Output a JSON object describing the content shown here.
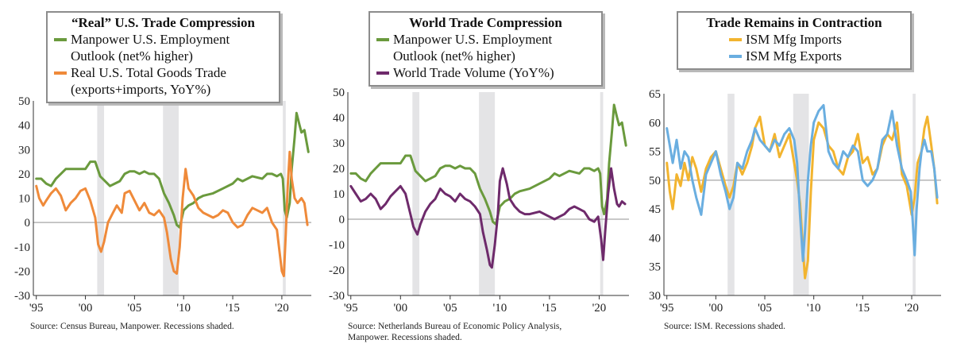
{
  "panels": [
    {
      "title": "“Real” U.S. Trade Compression",
      "source": "Source:  Census Bureau, Manpower. Recessions shaded.",
      "legend": [
        {
          "label": "Manpower U.S. Employment\nOutlook (net% higher)",
          "color": "#6a9a3d"
        },
        {
          "label": "Real U.S. Total Goods Trade\n(exports+imports, YoY%)",
          "color": "#ef8a3a"
        }
      ]
    },
    {
      "title": "World Trade Compression",
      "source": "Source:  Netherlands Bureau of Economic Policy Analysis,\nManpower. Recessions shaded.",
      "legend": [
        {
          "label": "Manpower U.S. Employment\nOutlook (net% higher)",
          "color": "#6a9a3d"
        },
        {
          "label": "World Trade Volume (YoY%)",
          "color": "#6e2a6b"
        }
      ]
    },
    {
      "title": "Trade Remains in Contraction",
      "source": "Source:  ISM. Recessions shaded.",
      "legend": [
        {
          "label": "ISM Mfg Imports",
          "color": "#f2b42f"
        },
        {
          "label": "ISM Mfg Exports",
          "color": "#6aaee0"
        }
      ]
    }
  ],
  "chart_data": [
    {
      "type": "line",
      "title": "“Real” U.S. Trade Compression",
      "x_ticks": [
        "'95",
        "'00",
        "'05",
        "'10",
        "'15",
        "'20"
      ],
      "x_tick_years": [
        1995,
        2000,
        2005,
        2010,
        2015,
        2020
      ],
      "xlim": [
        1994.7,
        2023
      ],
      "ylim": [
        -30,
        50
      ],
      "y_ticks": [
        -30,
        -20,
        -10,
        0,
        10,
        20,
        30,
        40,
        50
      ],
      "y_tick_labels": [
        "-30",
        "-20",
        "-10",
        "0",
        "10",
        "20",
        "30",
        "40",
        "50"
      ],
      "zero_line": 0,
      "recessions": [
        [
          2001.2,
          2001.9
        ],
        [
          2007.9,
          2009.5
        ],
        [
          2020.1,
          2020.4
        ]
      ],
      "series": [
        {
          "name": "Manpower U.S. Employment Outlook (net% higher)",
          "color": "#6a9a3d",
          "x": [
            1995,
            1995.5,
            1996,
            1996.5,
            1997,
            1997.5,
            1998,
            1999,
            2000,
            2000.5,
            2001,
            2001.5,
            2002,
            2002.5,
            2003,
            2003.5,
            2004,
            2004.5,
            2005,
            2005.5,
            2006,
            2006.5,
            2007,
            2007.5,
            2008,
            2008.5,
            2009,
            2009.3,
            2009.6,
            2010,
            2010.5,
            2011,
            2011.5,
            2012,
            2013,
            2014,
            2015,
            2015.5,
            2016,
            2017,
            2018,
            2018.5,
            2019,
            2019.5,
            2019.9,
            2020.1,
            2020.3,
            2020.5,
            2020.8,
            2021,
            2021.3,
            2021.5,
            2021.8,
            2022,
            2022.3,
            2022.7
          ],
          "y": [
            18,
            18,
            16,
            15,
            18,
            20,
            22,
            22,
            22,
            25,
            25,
            19,
            17,
            15,
            16,
            17,
            20,
            21,
            21,
            20,
            21,
            20,
            20,
            18,
            12,
            8,
            3,
            -1,
            -2,
            5,
            7,
            8,
            10,
            11,
            12,
            14,
            16,
            18,
            17,
            19,
            18,
            20,
            20,
            19,
            20,
            18,
            5,
            2,
            8,
            22,
            35,
            45,
            40,
            37,
            38,
            29
          ]
        },
        {
          "name": "Real U.S. Total Goods Trade (exports+imports, YoY%)",
          "color": "#ef8a3a",
          "x": [
            1995,
            1995.3,
            1995.7,
            1996,
            1996.5,
            1997,
            1997.5,
            1998,
            1998.5,
            1999,
            1999.5,
            2000,
            2000.5,
            2001,
            2001.3,
            2001.6,
            2001.9,
            2002.3,
            2002.8,
            2003.2,
            2003.7,
            2004,
            2004.5,
            2005,
            2005.5,
            2006,
            2006.5,
            2007,
            2007.5,
            2008,
            2008.3,
            2008.7,
            2009,
            2009.3,
            2009.6,
            2009.9,
            2010.2,
            2010.5,
            2011,
            2011.5,
            2012,
            2012.5,
            2013,
            2013.5,
            2014,
            2014.5,
            2015,
            2015.5,
            2016,
            2016.5,
            2017,
            2017.5,
            2018,
            2018.5,
            2019,
            2019.5,
            2020,
            2020.2,
            2020.4,
            2020.6,
            2020.8,
            2021,
            2021.3,
            2021.6,
            2022,
            2022.3,
            2022.6
          ],
          "y": [
            15,
            10,
            7,
            9,
            12,
            14,
            11,
            5,
            8,
            10,
            13,
            14,
            9,
            2,
            -9,
            -12,
            -8,
            0,
            4,
            7,
            4,
            12,
            13,
            9,
            5,
            8,
            4,
            3,
            5,
            2,
            -4,
            -15,
            -20,
            -21,
            -10,
            10,
            22,
            14,
            11,
            6,
            4,
            3,
            2,
            3,
            5,
            4,
            0,
            -2,
            -1,
            3,
            6,
            5,
            4,
            6,
            0,
            -3,
            -20,
            -22,
            -5,
            15,
            29,
            18,
            10,
            8,
            10,
            8,
            -1
          ]
        }
      ]
    },
    {
      "type": "line",
      "title": "World Trade Compression",
      "x_ticks": [
        "'95",
        "'00",
        "'05",
        "'10",
        "'15",
        "'20"
      ],
      "x_tick_years": [
        1995,
        2000,
        2005,
        2010,
        2015,
        2020
      ],
      "xlim": [
        1994.7,
        2023
      ],
      "ylim": [
        -30,
        50
      ],
      "y_ticks": [
        -30,
        -20,
        -10,
        0,
        10,
        20,
        30,
        40,
        50
      ],
      "y_tick_labels": [
        "-30",
        "-20",
        "-10",
        "0",
        "10",
        "20",
        "30",
        "40",
        "50"
      ],
      "zero_line": 0,
      "recessions": [
        [
          2001.2,
          2001.9
        ],
        [
          2007.9,
          2009.5
        ],
        [
          2020.1,
          2020.4
        ]
      ],
      "series": [
        {
          "name": "Manpower U.S. Employment Outlook (net% higher)",
          "color": "#6a9a3d",
          "x": [
            1995,
            1995.5,
            1996,
            1996.5,
            1997,
            1997.5,
            1998,
            1999,
            2000,
            2000.5,
            2001,
            2001.5,
            2002,
            2002.5,
            2003,
            2003.5,
            2004,
            2004.5,
            2005,
            2005.5,
            2006,
            2006.5,
            2007,
            2007.5,
            2008,
            2008.5,
            2009,
            2009.3,
            2009.6,
            2010,
            2010.5,
            2011,
            2011.5,
            2012,
            2013,
            2014,
            2015,
            2015.5,
            2016,
            2017,
            2018,
            2018.5,
            2019,
            2019.5,
            2019.9,
            2020.1,
            2020.3,
            2020.5,
            2020.8,
            2021,
            2021.3,
            2021.5,
            2021.8,
            2022,
            2022.3,
            2022.7
          ],
          "y": [
            18,
            18,
            16,
            15,
            18,
            20,
            22,
            22,
            22,
            25,
            25,
            19,
            17,
            15,
            16,
            17,
            20,
            21,
            21,
            20,
            21,
            20,
            20,
            18,
            12,
            8,
            3,
            -1,
            -2,
            5,
            7,
            8,
            10,
            11,
            12,
            14,
            16,
            18,
            17,
            19,
            18,
            20,
            20,
            19,
            20,
            18,
            5,
            2,
            8,
            22,
            35,
            45,
            40,
            37,
            38,
            29
          ]
        },
        {
          "name": "World Trade Volume (YoY%)",
          "color": "#6e2a6b",
          "x": [
            1995,
            1995.5,
            1996,
            1996.5,
            1997,
            1997.5,
            1998,
            1998.5,
            1999,
            1999.5,
            2000,
            2000.5,
            2001,
            2001.3,
            2001.7,
            2002,
            2002.5,
            2003,
            2003.5,
            2004,
            2004.5,
            2005,
            2005.5,
            2006,
            2006.5,
            2007,
            2007.5,
            2008,
            2008.3,
            2008.7,
            2009,
            2009.2,
            2009.5,
            2009.8,
            2010,
            2010.3,
            2010.7,
            2011,
            2011.5,
            2012,
            2012.5,
            2013,
            2014,
            2015,
            2015.5,
            2016,
            2016.5,
            2017,
            2017.5,
            2018,
            2018.5,
            2019,
            2019.5,
            2019.9,
            2020.2,
            2020.4,
            2020.6,
            2020.9,
            2021.2,
            2021.5,
            2021.8,
            2022,
            2022.3,
            2022.6
          ],
          "y": [
            13,
            10,
            7,
            8,
            10,
            8,
            4,
            6,
            9,
            11,
            13,
            10,
            2,
            -3,
            -6,
            -2,
            3,
            6,
            8,
            12,
            10,
            9,
            7,
            10,
            8,
            7,
            5,
            2,
            -5,
            -12,
            -18,
            -19,
            -10,
            2,
            15,
            20,
            14,
            8,
            5,
            3,
            2,
            2,
            3,
            1,
            0,
            1,
            2,
            4,
            5,
            4,
            3,
            0,
            -1,
            1,
            -8,
            -16,
            -5,
            10,
            20,
            12,
            6,
            5,
            7,
            6
          ]
        }
      ]
    },
    {
      "type": "line",
      "title": "Trade Remains in Contraction",
      "x_ticks": [
        "'95",
        "'00",
        "'05",
        "'10",
        "'15",
        "'20"
      ],
      "x_tick_years": [
        1995,
        2000,
        2005,
        2010,
        2015,
        2020
      ],
      "xlim": [
        1994.7,
        2023
      ],
      "ylim": [
        30,
        65
      ],
      "y_ticks": [
        30,
        35,
        40,
        45,
        50,
        55,
        60,
        65
      ],
      "y_tick_labels": [
        "30",
        "35",
        "40",
        "45",
        "50",
        "55",
        "60",
        "65"
      ],
      "zero_line": 50,
      "recessions": [
        [
          2001.2,
          2001.9
        ],
        [
          2007.9,
          2009.5
        ],
        [
          2020.1,
          2020.4
        ]
      ],
      "series": [
        {
          "name": "ISM Mfg Imports",
          "color": "#f2b42f",
          "x": [
            1995,
            1995.3,
            1995.6,
            1996,
            1996.4,
            1996.8,
            1997.2,
            1997.6,
            1998,
            1998.5,
            1999,
            1999.5,
            2000,
            2000.5,
            2001,
            2001.4,
            2001.8,
            2002.2,
            2002.7,
            2003.2,
            2003.7,
            2004,
            2004.5,
            2005,
            2005.5,
            2006,
            2006.5,
            2007,
            2007.5,
            2008,
            2008.3,
            2008.6,
            2008.9,
            2009.1,
            2009.4,
            2009.7,
            2010,
            2010.5,
            2011,
            2011.5,
            2012,
            2012.5,
            2013,
            2013.5,
            2014,
            2014.5,
            2015,
            2015.5,
            2016,
            2016.5,
            2017,
            2017.5,
            2018,
            2018.5,
            2019,
            2019.5,
            2020,
            2020.3,
            2020.6,
            2021,
            2021.3,
            2021.6,
            2022,
            2022.3,
            2022.6
          ],
          "y": [
            53,
            48,
            45,
            51,
            49,
            53,
            50,
            54,
            52,
            48,
            52,
            54,
            55,
            52,
            49,
            47,
            49,
            53,
            51,
            53,
            56,
            59,
            61,
            56,
            55,
            58,
            54,
            56,
            58,
            53,
            50,
            46,
            38,
            33,
            36,
            48,
            57,
            60,
            59,
            56,
            55,
            52,
            51,
            54,
            55,
            58,
            53,
            54,
            51,
            52,
            56,
            58,
            57,
            60,
            51,
            49,
            44,
            47,
            53,
            55,
            59,
            61,
            56,
            52,
            46
          ]
        },
        {
          "name": "ISM Mfg Exports",
          "color": "#6aaee0",
          "x": [
            1995,
            1995.3,
            1995.6,
            1996,
            1996.4,
            1996.8,
            1997.2,
            1997.6,
            1998,
            1998.5,
            1999,
            1999.5,
            2000,
            2000.5,
            2001,
            2001.4,
            2001.8,
            2002.2,
            2002.7,
            2003.2,
            2003.7,
            2004,
            2004.5,
            2005,
            2005.5,
            2006,
            2006.5,
            2007,
            2007.5,
            2008,
            2008.3,
            2008.6,
            2008.9,
            2009.1,
            2009.4,
            2009.7,
            2010,
            2010.5,
            2011,
            2011.5,
            2012,
            2012.5,
            2013,
            2013.5,
            2014,
            2014.5,
            2015,
            2015.5,
            2016,
            2016.5,
            2017,
            2017.5,
            2018,
            2018.5,
            2019,
            2019.5,
            2019.9,
            2020.1,
            2020.3,
            2020.5,
            2020.8,
            2021,
            2021.3,
            2021.6,
            2022,
            2022.3,
            2022.6
          ],
          "y": [
            59,
            56,
            53,
            57,
            52,
            55,
            54,
            50,
            47,
            44,
            51,
            53,
            55,
            51,
            48,
            45,
            47,
            53,
            52,
            55,
            57,
            59,
            57,
            56,
            55,
            57,
            56,
            58,
            59,
            57,
            53,
            44,
            36,
            41,
            50,
            56,
            60,
            62,
            63,
            55,
            53,
            52,
            55,
            54,
            56,
            55,
            50,
            49,
            50,
            52,
            57,
            58,
            62,
            56,
            52,
            50,
            48,
            43,
            37,
            45,
            52,
            55,
            57,
            55,
            55,
            52,
            47
          ]
        }
      ]
    }
  ]
}
